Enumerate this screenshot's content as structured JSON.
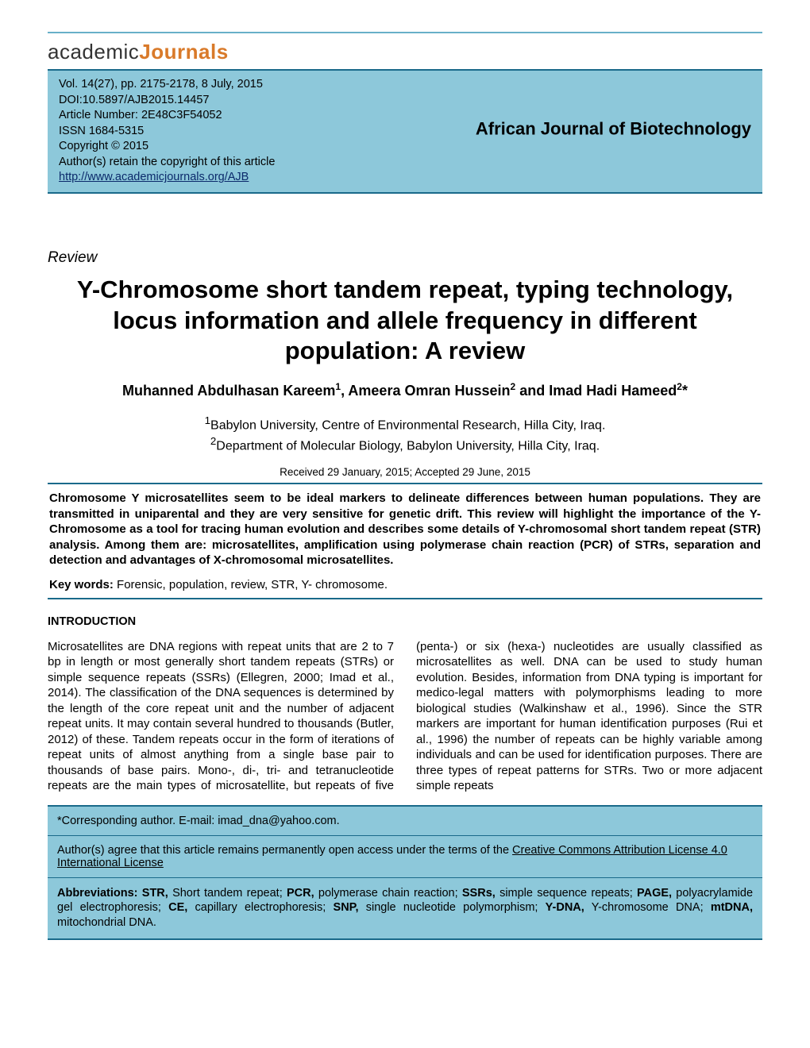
{
  "logo": {
    "part1": "academic",
    "part2": "Journals"
  },
  "meta": {
    "vol_line": "Vol. 14(27), pp. 2175-2178, 8 July, 2015",
    "doi": "DOI:10.5897/AJB2015.14457",
    "article_number": "Article Number: 2E48C3F54052",
    "issn": "ISSN 1684-5315",
    "copyright": "Copyright © 2015",
    "author_retain": "Author(s) retain the copyright of this article",
    "url": "http://www.academicjournals.org/AJB"
  },
  "journal_name": "African Journal of Biotechnology",
  "review_label": "Review",
  "title": "Y-Chromosome short tandem repeat, typing technology, locus information and allele frequency in different population: A review",
  "authors_html": "Muhanned Abdulhasan Kareem",
  "author1": "Muhanned Abdulhasan Kareem",
  "author2": "Ameera Omran Hussein",
  "author3": "Imad Hadi Hameed",
  "affil1": "Babylon University, Centre of Environmental Research, Hilla City, Iraq.",
  "affil2": "Department of Molecular Biology, Babylon University, Hilla City, Iraq.",
  "dates": "Received 29 January, 2015; Accepted 29 June, 2015",
  "abstract": "Chromosome Y microsatellites seem to be ideal markers to delineate differences between human populations. They are transmitted in uniparental and they are very sensitive for genetic drift. This review will highlight the importance of the Y- Chromosome as a tool for tracing human evolution and describes some details of Y-chromosomal short tandem repeat (STR) analysis. Among them are: microsatellites, amplification using polymerase chain reaction (PCR) of STRs, separation and detection and advantages of X-chromosomal microsatellites.",
  "keywords_label": "Key words:",
  "keywords": "  Forensic, population, review, STR, Y- chromosome.",
  "intro_head": "INTRODUCTION",
  "intro_body": "Microsatellites are DNA regions with repeat units that are 2 to 7 bp in length or most generally short tandem repeats (STRs) or simple sequence repeats (SSRs) (Ellegren, 2000; Imad et al., 2014). The classification of the DNA sequences is determined by the length of the core repeat unit and the number of adjacent repeat units. It may contain several hundred to thousands (Butler, 2012) of these. Tandem repeats occur in the form of iterations of repeat units of almost anything from a single base pair to thousands of base pairs. Mono-, di-, tri- and tetranucleotide repeats are the main types of microsatellite, but repeats of five (penta-) or six (hexa-) nucleotides are usually classified as microsatellites as well. DNA can be used to study human evolution. Besides, information from DNA typing is important for medico-legal matters with polymorphisms leading to more biological studies (Walkinshaw et al., 1996). Since the STR markers are important for human identification purposes (Rui et al., 1996) the number of repeats can be highly variable among individuals and can be used for identification purposes. There are three types of repeat patterns for STRs. Two or more adjacent simple repeats",
  "footer": {
    "corresponding": "*Corresponding author. E-mail: imad_dna@yahoo.com.",
    "open_access_pre": "Author(s) agree that this article remains permanently open access under the terms of the ",
    "license_link": "Creative Commons Attribution License 4.0 International License",
    "abbr_label": "Abbreviations: ",
    "abbr_str": "STR,",
    "abbr_str_def": " Short tandem repeat; ",
    "abbr_pcr": "PCR,",
    "abbr_pcr_def": " polymerase chain reaction; ",
    "abbr_ssrs": "SSRs,",
    "abbr_ssrs_def": " simple sequence repeats; ",
    "abbr_page": "PAGE,",
    "abbr_page_def": " polyacrylamide gel electrophoresis; ",
    "abbr_ce": "CE,",
    "abbr_ce_def": " capillary electrophoresis; ",
    "abbr_snp": "SNP,",
    "abbr_snp_def": " single nucleotide polymorphism; ",
    "abbr_ydna": "Y-DNA,",
    "abbr_ydna_def": " Y-chromosome DNA; ",
    "abbr_mtdna": "mtDNA,",
    "abbr_mtdna_def": " mitochondrial DNA."
  },
  "colors": {
    "box_bg": "#8dc8da",
    "rule": "#1a6a8a",
    "top_rule": "#68b0c8"
  }
}
